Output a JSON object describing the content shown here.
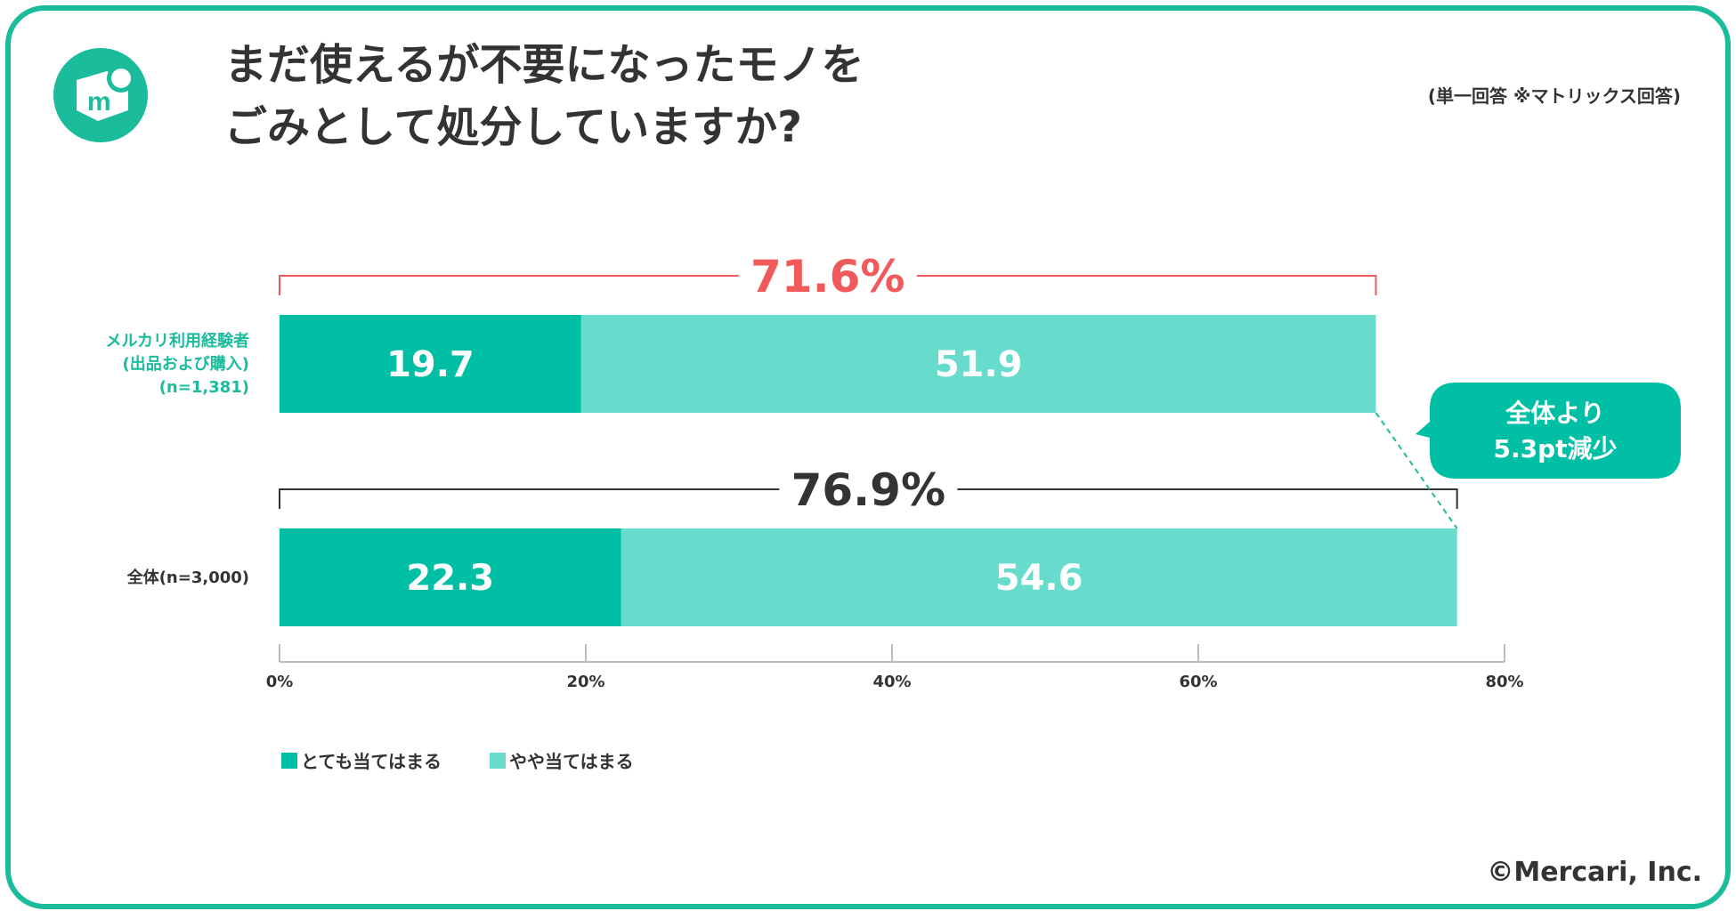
{
  "header": {
    "title_line1": "まだ使えるが不要になったモノを",
    "title_line2": "ごみとして処分していますか?",
    "note": "(単一回答 ※マトリックス回答)",
    "logo_icon": "mercari-box-logo-icon"
  },
  "footer": {
    "copyright": "©Mercari, Inc."
  },
  "colors": {
    "frame": "#1abc9c",
    "strong": "#00bfa5",
    "light": "#68dccc",
    "highlight": "#f05a5a",
    "text": "#333333",
    "category1_label": "#1abc9c"
  },
  "chart_data": {
    "type": "bar",
    "orientation": "horizontal",
    "stacked": true,
    "categories": [
      {
        "lines": [
          "メルカリ利用経験者",
          "(出品および購入)",
          "(n=1,381)"
        ],
        "color": "#1abc9c"
      },
      {
        "lines": [
          "全体(n=3,000)"
        ],
        "color": "#333333"
      }
    ],
    "series": [
      {
        "name": "とても当てはまる",
        "values": [
          19.7,
          22.3
        ],
        "color": "#00bfa5"
      },
      {
        "name": "やや当てはまる",
        "values": [
          51.9,
          54.6
        ],
        "color": "#68dccc"
      }
    ],
    "totals": [
      {
        "label": "71.6%",
        "value": 71.6,
        "color": "#f05a5a"
      },
      {
        "label": "76.9%",
        "value": 76.9,
        "color": "#333333"
      }
    ],
    "callout": {
      "lines": [
        "全体より",
        "5.3pt減少"
      ]
    },
    "xlim": [
      0,
      80
    ],
    "xticks": [
      0,
      20,
      40,
      60,
      80
    ],
    "xtick_labels": [
      "0%",
      "20%",
      "40%",
      "60%",
      "80%"
    ],
    "legend_position": "bottom-left",
    "grid": false
  }
}
